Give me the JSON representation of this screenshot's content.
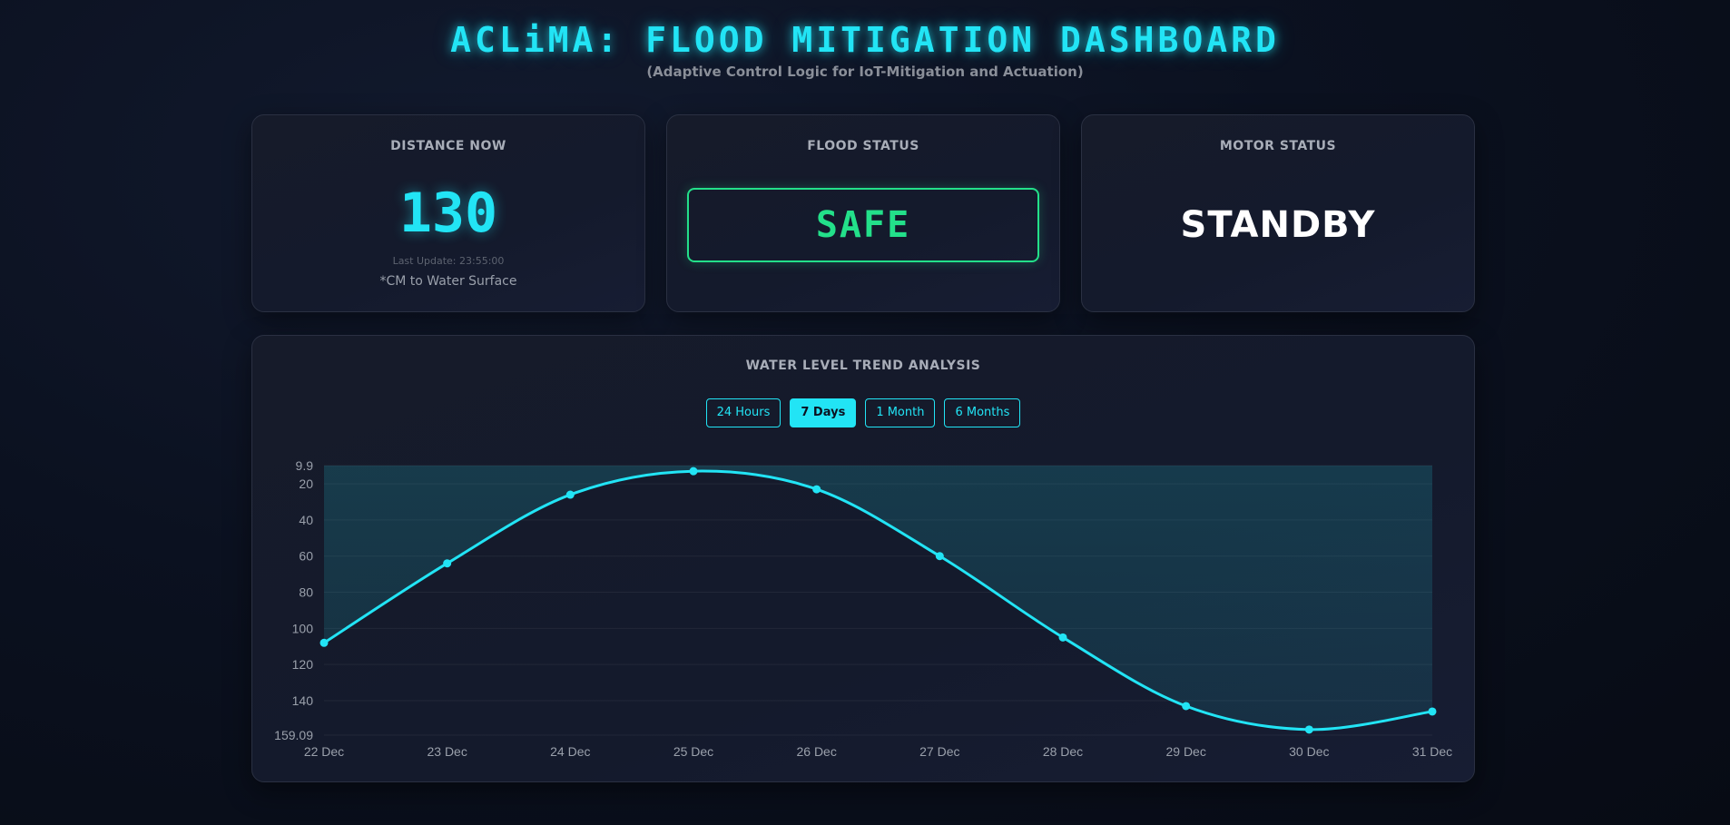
{
  "header": {
    "title": "ACLiMA: FLOOD MITIGATION DASHBOARD",
    "subtitle": "(Adaptive Control Logic for IoT-Mitigation and Actuation)"
  },
  "distance": {
    "label": "DISTANCE NOW",
    "value": "130",
    "last_update": "Last Update: 23:55:00",
    "unit_note": "*CM to Water Surface"
  },
  "flood": {
    "label": "FLOOD STATUS",
    "value": "SAFE",
    "color": "#23e08a"
  },
  "motor": {
    "label": "MOTOR STATUS",
    "value": "STANDBY"
  },
  "trend": {
    "title": "WATER LEVEL TREND ANALYSIS",
    "ranges": [
      "24 Hours",
      "7 Days",
      "1 Month",
      "6 Months"
    ],
    "active_range": "7 Days"
  },
  "colors": {
    "accent": "#22e4f5",
    "safe": "#23e08a",
    "background": "#0b1120"
  },
  "chart_data": {
    "type": "line",
    "x": [
      "22 Dec",
      "23 Dec",
      "24 Dec",
      "25 Dec",
      "26 Dec",
      "27 Dec",
      "28 Dec",
      "29 Dec",
      "30 Dec",
      "31 Dec"
    ],
    "values": [
      108,
      64,
      26,
      13,
      23,
      60,
      105,
      143,
      156,
      146
    ],
    "y_ticks": [
      "9.9",
      "20",
      "40",
      "60",
      "80",
      "100",
      "120",
      "140",
      "159.09"
    ],
    "ylim": [
      9.9,
      159.09
    ],
    "y_reversed": true,
    "grid": true,
    "fill": true,
    "legend": "none"
  }
}
